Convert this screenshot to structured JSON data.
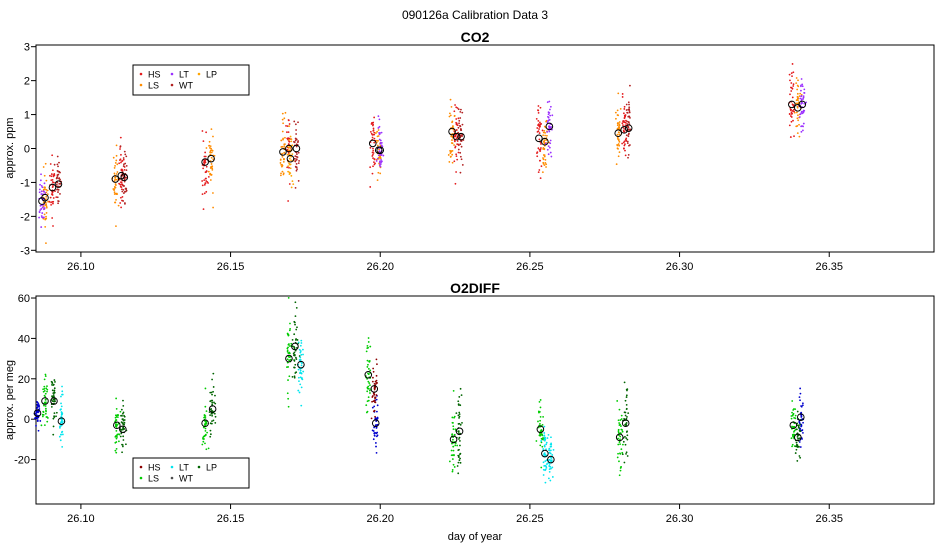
{
  "figure": {
    "title": "090126a   Calibration Data 3",
    "xlabel": "day of year"
  },
  "chart_data": [
    {
      "type": "scatter",
      "title": "CO2",
      "xlabel": "",
      "ylabel": "approx. ppm",
      "xlim": [
        26.085,
        26.385
      ],
      "ylim": [
        -3.05,
        3.05
      ],
      "xticks": [
        "26.10",
        "26.15",
        "26.20",
        "26.25",
        "26.30",
        "26.35"
      ],
      "xtick_values": [
        26.1,
        26.15,
        26.2,
        26.25,
        26.3,
        26.35
      ],
      "yticks": [
        -3,
        -2,
        -1,
        0,
        1,
        2,
        3
      ],
      "grid": false,
      "legend_position": "top-left",
      "legend": [
        {
          "label": "HS",
          "color": "#e41a1c"
        },
        {
          "label": "LS",
          "color": "#ff8c00"
        },
        {
          "label": "LT",
          "color": "#9b30ff"
        },
        {
          "label": "WT",
          "color": "#b22222"
        },
        {
          "label": "LP",
          "color": "#ffa500"
        }
      ],
      "series": [
        {
          "label": "HS",
          "color": "#e41a1c",
          "points": [
            {
              "x": 26.0905,
              "y": -1.15,
              "spread": 0.45
            },
            {
              "x": 26.1135,
              "y": -0.8,
              "spread": 0.5
            },
            {
              "x": 26.1415,
              "y": -0.4,
              "spread": 0.5
            },
            {
              "x": 26.1695,
              "y": 0.0,
              "spread": 0.5
            },
            {
              "x": 26.1975,
              "y": 0.15,
              "spread": 0.45
            },
            {
              "x": 26.2255,
              "y": 0.35,
              "spread": 0.45
            },
            {
              "x": 26.253,
              "y": 0.3,
              "spread": 0.55
            },
            {
              "x": 26.2815,
              "y": 0.55,
              "spread": 0.45
            },
            {
              "x": 26.3375,
              "y": 1.3,
              "spread": 0.5
            }
          ]
        },
        {
          "label": "LS",
          "color": "#ff8c00",
          "points": [
            {
              "x": 26.088,
              "y": -1.45,
              "spread": 0.4
            },
            {
              "x": 26.1115,
              "y": -0.9,
              "spread": 0.45
            },
            {
              "x": 26.1435,
              "y": -0.3,
              "spread": 0.45
            },
            {
              "x": 26.1675,
              "y": -0.1,
              "spread": 0.45
            },
            {
              "x": 26.1995,
              "y": -0.05,
              "spread": 0.4
            },
            {
              "x": 26.224,
              "y": 0.5,
              "spread": 0.45
            },
            {
              "x": 26.255,
              "y": 0.2,
              "spread": 0.45
            },
            {
              "x": 26.2795,
              "y": 0.45,
              "spread": 0.4
            },
            {
              "x": 26.3395,
              "y": 1.2,
              "spread": 0.45
            }
          ]
        },
        {
          "label": "LT",
          "color": "#9b30ff",
          "points": [
            {
              "x": 26.087,
              "y": -1.55,
              "spread": 0.4
            },
            {
              "x": 26.2,
              "y": -0.05,
              "spread": 0.4
            },
            {
              "x": 26.2565,
              "y": 0.65,
              "spread": 0.45
            },
            {
              "x": 26.341,
              "y": 1.3,
              "spread": 0.45
            }
          ]
        },
        {
          "label": "WT",
          "color": "#b22222",
          "points": [
            {
              "x": 26.0925,
              "y": -1.05,
              "spread": 0.4
            },
            {
              "x": 26.1145,
              "y": -0.85,
              "spread": 0.4
            },
            {
              "x": 26.172,
              "y": 0.0,
              "spread": 0.4
            },
            {
              "x": 26.227,
              "y": 0.35,
              "spread": 0.4
            },
            {
              "x": 26.283,
              "y": 0.6,
              "spread": 0.4
            }
          ]
        },
        {
          "label": "LP",
          "color": "#ffa500",
          "points": [
            {
              "x": 26.17,
              "y": -0.3,
              "spread": 0.4
            }
          ]
        }
      ]
    },
    {
      "type": "scatter",
      "title": "O2DIFF",
      "xlabel": "day of year",
      "ylabel": "approx. per meg",
      "xlim": [
        26.085,
        26.385
      ],
      "ylim": [
        -42,
        61
      ],
      "xticks": [
        "26.10",
        "26.15",
        "26.20",
        "26.25",
        "26.30",
        "26.35"
      ],
      "xtick_values": [
        26.1,
        26.15,
        26.2,
        26.25,
        26.3,
        26.35
      ],
      "yticks": [
        -20,
        0,
        20,
        40,
        60
      ],
      "grid": false,
      "legend_position": "bottom-left",
      "legend": [
        {
          "label": "HS",
          "color": "#8b0000"
        },
        {
          "label": "LS",
          "color": "#00cc00"
        },
        {
          "label": "LT",
          "color": "#00e5ee"
        },
        {
          "label": "WT",
          "color": "#4d4d4d"
        },
        {
          "label": "LP",
          "color": "#006400"
        }
      ],
      "series": [
        {
          "label": "LP",
          "color": "#0000cd",
          "points": [
            {
              "x": 26.0855,
              "y": 3,
              "spread": 3
            },
            {
              "x": 26.1985,
              "y": -2,
              "spread": 6
            },
            {
              "x": 26.3405,
              "y": 1,
              "spread": 6
            }
          ]
        },
        {
          "label": "LS",
          "color": "#00cc00",
          "points": [
            {
              "x": 26.088,
              "y": 9,
              "spread": 6
            },
            {
              "x": 26.112,
              "y": -3,
              "spread": 6
            },
            {
              "x": 26.1415,
              "y": -2,
              "spread": 6
            },
            {
              "x": 26.1695,
              "y": 30,
              "spread": 9
            },
            {
              "x": 26.196,
              "y": 22,
              "spread": 8
            },
            {
              "x": 26.2245,
              "y": -10,
              "spread": 8
            },
            {
              "x": 26.2535,
              "y": -5,
              "spread": 6
            },
            {
              "x": 26.28,
              "y": -9,
              "spread": 8
            },
            {
              "x": 26.338,
              "y": -3,
              "spread": 6
            }
          ]
        },
        {
          "label": "WT",
          "color": "#006400",
          "points": [
            {
              "x": 26.091,
              "y": 9,
              "spread": 6
            },
            {
              "x": 26.114,
              "y": -5,
              "spread": 6
            },
            {
              "x": 26.144,
              "y": 5,
              "spread": 6
            },
            {
              "x": 26.1715,
              "y": 36,
              "spread": 8
            },
            {
              "x": 26.2265,
              "y": -6,
              "spread": 8
            },
            {
              "x": 26.282,
              "y": -2,
              "spread": 8
            },
            {
              "x": 26.3395,
              "y": -9,
              "spread": 6
            }
          ]
        },
        {
          "label": "LT",
          "color": "#00e5ee",
          "points": [
            {
              "x": 26.0935,
              "y": -1,
              "spread": 6
            },
            {
              "x": 26.1735,
              "y": 27,
              "spread": 7
            },
            {
              "x": 26.255,
              "y": -17,
              "spread": 6
            },
            {
              "x": 26.257,
              "y": -20,
              "spread": 6
            }
          ]
        },
        {
          "label": "HS",
          "color": "#8b0000",
          "points": [
            {
              "x": 26.198,
              "y": 15,
              "spread": 6
            }
          ]
        }
      ]
    }
  ]
}
